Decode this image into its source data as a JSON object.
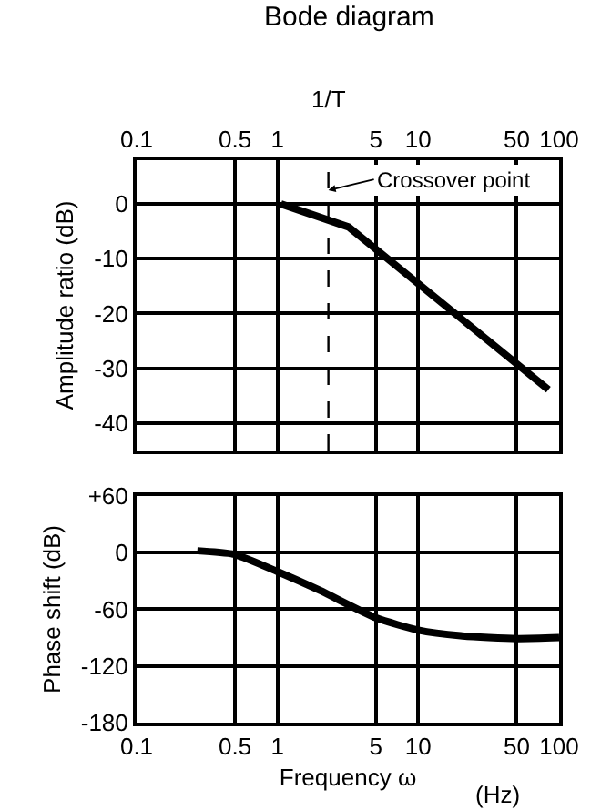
{
  "chart_data": [
    {
      "type": "line",
      "title": "Bode diagram",
      "ylabel": "Amplitude ratio (dB)",
      "log": "x",
      "grid": true,
      "marker": "none",
      "line_style": "solid",
      "xlim": [
        0.1,
        100
      ],
      "xticks": [
        0.1,
        0.5,
        1,
        5,
        10,
        50,
        100
      ],
      "ylim": [
        -45,
        8
      ],
      "yticks": [
        0,
        -10,
        -20,
        -30,
        -40
      ],
      "x": [
        1.06,
        3.2,
        84
      ],
      "series": [
        {
          "color": "#000000",
          "values": [
            0,
            -4.2,
            -33.9
          ]
        }
      ],
      "ref_lines": [
        {
          "axis": "x",
          "value": 2.3,
          "label": "1/T",
          "line_style": "dashed",
          "color": "#000000"
        }
      ],
      "annotations": [
        {
          "text": "Crossover point",
          "x": 2.3,
          "y": 2.5
        }
      ]
    },
    {
      "type": "line",
      "xlabel": "Frequency ω",
      "ylabel": "Phase shift (dB)",
      "log": "x",
      "grid": true,
      "marker": "none",
      "line_style": "solid",
      "xlim": [
        0.1,
        100
      ],
      "xticks": [
        0.1,
        0.5,
        1,
        5,
        10,
        50,
        100
      ],
      "ylim": [
        -180,
        60
      ],
      "yticks": [
        {
          "value": 60,
          "label": "+60"
        },
        0,
        -60,
        -120,
        -180
      ],
      "x": [
        0.27,
        0.5,
        1,
        2,
        5,
        10,
        20,
        50,
        100
      ],
      "series": [
        {
          "color": "#000000",
          "values": [
            2,
            -2,
            -20,
            -40,
            -69,
            -82,
            -88,
            -91,
            -90
          ]
        }
      ],
      "annotations": [
        "(Hz)"
      ]
    }
  ]
}
